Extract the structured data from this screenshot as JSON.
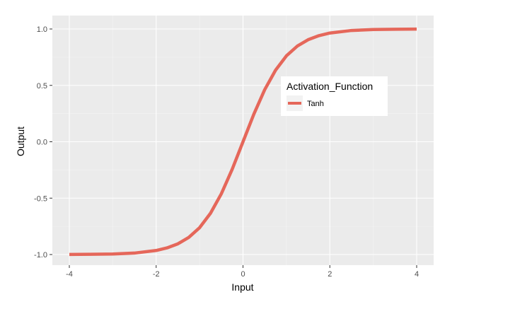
{
  "chart_data": {
    "type": "line",
    "xlabel": "Input",
    "ylabel": "Output",
    "xlim": [
      -4,
      4
    ],
    "ylim": [
      -1,
      1
    ],
    "x_ticks": [
      -4,
      -2,
      0,
      2,
      4
    ],
    "y_ticks": [
      -1.0,
      -0.5,
      0.0,
      0.5,
      1.0
    ],
    "x_tick_labels": [
      "-4",
      "-2",
      "0",
      "2",
      "4"
    ],
    "y_tick_labels": [
      "-1.0",
      "-0.5",
      "0.0",
      "0.5",
      "1.0"
    ],
    "grid": true,
    "legend": {
      "title": "Activation_Function",
      "placement": "inside-right",
      "entries": [
        "Tanh"
      ]
    },
    "series": [
      {
        "name": "Tanh",
        "color": "#E5675A",
        "x": [
          -4,
          -3.5,
          -3,
          -2.5,
          -2,
          -1.75,
          -1.5,
          -1.25,
          -1,
          -0.75,
          -0.5,
          -0.25,
          0,
          0.25,
          0.5,
          0.75,
          1,
          1.25,
          1.5,
          1.75,
          2,
          2.5,
          3,
          3.5,
          4
        ],
        "y": [
          -0.999,
          -0.998,
          -0.995,
          -0.987,
          -0.964,
          -0.941,
          -0.905,
          -0.848,
          -0.762,
          -0.635,
          -0.462,
          -0.245,
          0,
          0.245,
          0.462,
          0.635,
          0.762,
          0.848,
          0.905,
          0.941,
          0.964,
          0.987,
          0.995,
          0.998,
          0.999
        ]
      }
    ]
  }
}
